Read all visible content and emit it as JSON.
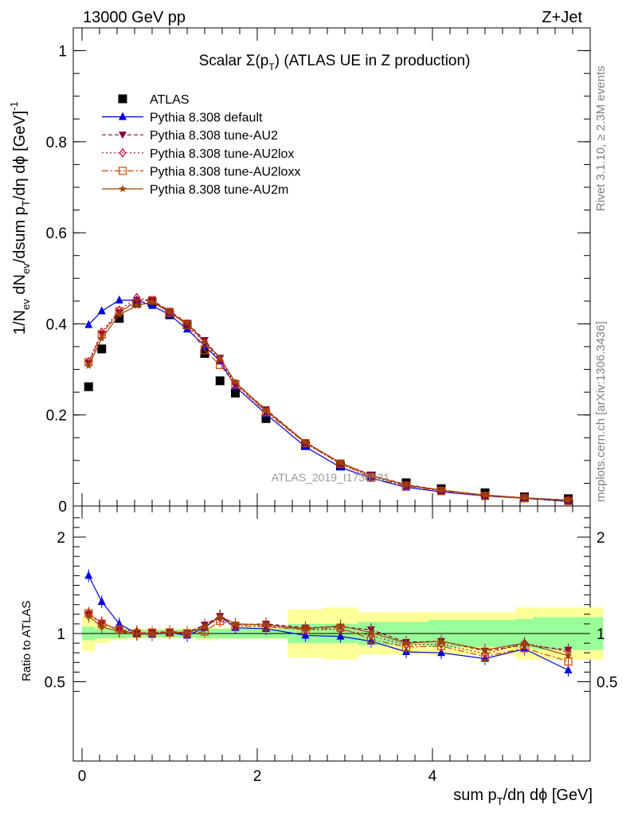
{
  "header": {
    "left": "13000 GeV pp",
    "right": "Z+Jet"
  },
  "side_labels": {
    "rivet": "Rivet 3.1.10, ≥ 2.3M events",
    "mcplots": "mcplots.cern.ch [arXiv:1306.3436]"
  },
  "watermark": "ATLAS_2019_I1736531",
  "chart_data": [
    {
      "type": "line",
      "title": "Scalar Σ(p_T) (ATLAS UE in Z production)",
      "ylabel": "1/N_ev dN_ev/dsum p_T/dη dϕ [GeV]^-1",
      "xlabel": "sum p_T/dη dϕ [GeV]",
      "xlim": [
        -0.1,
        5.8
      ],
      "ylim": [
        0,
        1.05
      ],
      "yticks": [
        "0",
        "0.2",
        "0.4",
        "0.6",
        "0.8",
        "1"
      ],
      "x": [
        0.075,
        0.225,
        0.425,
        0.625,
        0.8,
        1.0,
        1.2,
        1.4,
        1.575,
        1.75,
        2.1,
        2.55,
        2.95,
        3.3,
        3.7,
        4.1,
        4.6,
        5.05,
        5.55
      ],
      "series": [
        {
          "name": "ATLAS",
          "color": "#000000",
          "marker": "square",
          "values": [
            0.262,
            0.345,
            0.412,
            0.445,
            0.447,
            0.42,
            0.398,
            0.335,
            0.275,
            0.248,
            0.192,
            0.133,
            0.088,
            0.066,
            0.051,
            0.038,
            0.029,
            0.02,
            0.016
          ]
        },
        {
          "name": "Pythia 8.308 default",
          "color": "#0000dd",
          "marker": "triangle-up",
          "dash": "",
          "values": [
            0.398,
            0.428,
            0.452,
            0.452,
            0.44,
            0.42,
            0.388,
            0.352,
            0.318,
            0.262,
            0.202,
            0.13,
            0.085,
            0.061,
            0.041,
            0.031,
            0.022,
            0.017,
            0.01
          ]
        },
        {
          "name": "Pythia 8.308 tune-AU2",
          "color": "#880044",
          "marker": "triangle-down",
          "dash": "5,3",
          "values": [
            0.314,
            0.378,
            0.425,
            0.452,
            0.452,
            0.428,
            0.402,
            0.364,
            0.325,
            0.27,
            0.212,
            0.14,
            0.095,
            0.068,
            0.047,
            0.035,
            0.024,
            0.018,
            0.013
          ]
        },
        {
          "name": "Pythia 8.308 tune-AU2lox",
          "color": "#bb0033",
          "marker": "diamond",
          "dash": "2,3",
          "values": [
            0.317,
            0.382,
            0.43,
            0.458,
            0.45,
            0.425,
            0.398,
            0.358,
            0.32,
            0.268,
            0.208,
            0.138,
            0.092,
            0.065,
            0.045,
            0.034,
            0.023,
            0.018,
            0.013
          ]
        },
        {
          "name": "Pythia 8.308 tune-AU2loxx",
          "color": "#cc4400",
          "marker": "open-square",
          "dash": "8,3,2,3",
          "values": [
            0.316,
            0.377,
            0.428,
            0.445,
            0.452,
            0.425,
            0.398,
            0.342,
            0.31,
            0.267,
            0.206,
            0.138,
            0.093,
            0.062,
            0.044,
            0.033,
            0.022,
            0.017,
            0.011
          ]
        },
        {
          "name": "Pythia 8.308 tune-AU2m",
          "color": "#994400",
          "marker": "star",
          "dash": "",
          "values": [
            0.308,
            0.368,
            0.42,
            0.44,
            0.448,
            0.425,
            0.402,
            0.36,
            0.325,
            0.272,
            0.21,
            0.14,
            0.095,
            0.067,
            0.046,
            0.035,
            0.024,
            0.018,
            0.013
          ]
        }
      ]
    },
    {
      "type": "line",
      "ylabel": "Ratio to ATLAS",
      "xlabel": "sum p_T/dη dϕ [GeV]",
      "xlim": [
        -0.1,
        5.8
      ],
      "ylim": [
        0.33,
        2.3
      ],
      "yticks": [
        "0.5",
        "1",
        "2"
      ],
      "xticks": [
        "0",
        "2",
        "4"
      ],
      "bins": [
        [
          0,
          0.15
        ],
        [
          0.15,
          0.32
        ],
        [
          0.32,
          0.52
        ],
        [
          0.52,
          0.72
        ],
        [
          0.72,
          0.9
        ],
        [
          0.9,
          1.1
        ],
        [
          1.1,
          1.3
        ],
        [
          1.3,
          1.5
        ],
        [
          1.5,
          1.65
        ],
        [
          1.65,
          1.85
        ],
        [
          1.85,
          2.35
        ],
        [
          2.35,
          2.75
        ],
        [
          2.75,
          3.15
        ],
        [
          3.15,
          3.45
        ],
        [
          3.45,
          3.95
        ],
        [
          3.95,
          4.25
        ],
        [
          4.25,
          4.95
        ],
        [
          4.95,
          5.15
        ],
        [
          5.15,
          5.95
        ]
      ],
      "band_stat": [
        0.07,
        0.05,
        0.05,
        0.04,
        0.04,
        0.04,
        0.04,
        0.05,
        0.05,
        0.05,
        0.05,
        0.1,
        0.1,
        0.12,
        0.12,
        0.14,
        0.14,
        0.15,
        0.17
      ],
      "band_total": [
        0.18,
        0.1,
        0.07,
        0.05,
        0.05,
        0.05,
        0.05,
        0.07,
        0.06,
        0.06,
        0.06,
        0.25,
        0.27,
        0.22,
        0.22,
        0.22,
        0.22,
        0.27,
        0.27
      ],
      "x": [
        0.075,
        0.225,
        0.425,
        0.625,
        0.8,
        1.0,
        1.2,
        1.4,
        1.575,
        1.75,
        2.1,
        2.55,
        2.95,
        3.3,
        3.7,
        4.1,
        4.6,
        5.05,
        5.55
      ],
      "series": [
        {
          "name": "Pythia 8.308 default",
          "color": "#0000dd",
          "marker": "triangle-up",
          "dash": "",
          "values": [
            1.6,
            1.33,
            1.1,
            1.0,
            0.99,
            1.01,
            0.98,
            1.06,
            1.18,
            1.06,
            1.05,
            0.98,
            0.97,
            0.92,
            0.81,
            0.8,
            0.74,
            0.84,
            0.62
          ]
        },
        {
          "name": "Pythia 8.308 tune-AU2",
          "color": "#880044",
          "marker": "triangle-down",
          "dash": "5,3",
          "values": [
            1.2,
            1.11,
            1.03,
            1.0,
            1.01,
            1.02,
            1.01,
            1.09,
            1.18,
            1.09,
            1.1,
            1.06,
            1.07,
            1.04,
            0.91,
            0.92,
            0.82,
            0.88,
            0.83
          ]
        },
        {
          "name": "Pythia 8.308 tune-AU2lox",
          "color": "#bb0033",
          "marker": "diamond",
          "dash": "2,3",
          "values": [
            1.21,
            1.11,
            1.04,
            1.02,
            1.0,
            1.01,
            1.0,
            1.07,
            1.16,
            1.08,
            1.08,
            1.04,
            1.04,
            0.98,
            0.88,
            0.89,
            0.79,
            0.9,
            0.81
          ]
        },
        {
          "name": "Pythia 8.308 tune-AU2loxx",
          "color": "#cc4400",
          "marker": "open-square",
          "dash": "8,3,2,3",
          "values": [
            1.21,
            1.1,
            1.04,
            1.0,
            1.01,
            1.01,
            1.0,
            1.02,
            1.13,
            1.08,
            1.07,
            1.04,
            1.06,
            0.94,
            0.86,
            0.87,
            0.76,
            0.85,
            0.71
          ]
        },
        {
          "name": "Pythia 8.308 tune-AU2m",
          "color": "#994400",
          "marker": "star",
          "dash": "",
          "values": [
            1.18,
            1.07,
            1.02,
            0.99,
            1.0,
            1.01,
            1.01,
            1.07,
            1.18,
            1.1,
            1.09,
            1.05,
            1.08,
            1.01,
            0.9,
            0.92,
            0.83,
            0.9,
            0.77
          ]
        }
      ]
    }
  ]
}
